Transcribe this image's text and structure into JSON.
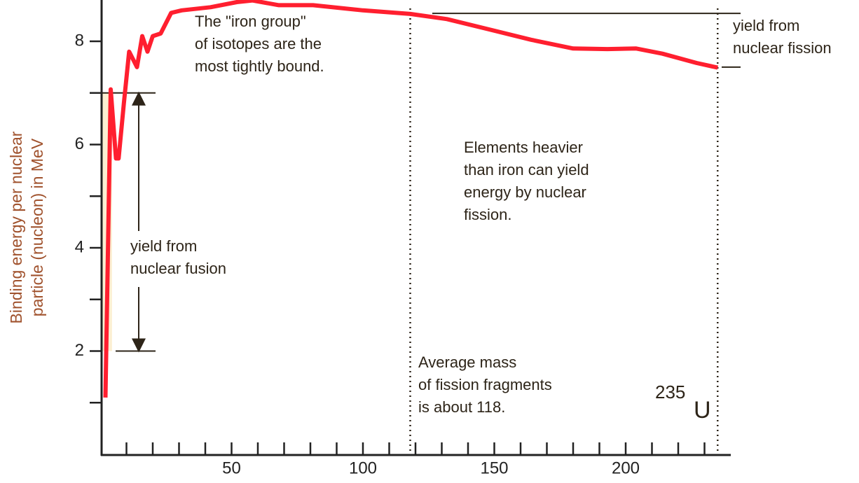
{
  "chart_data": {
    "type": "line",
    "ylabel": [
      "Binding energy per nuclear",
      "particle (nucleon) in MeV"
    ],
    "x": [
      2,
      4,
      6,
      7,
      9,
      11,
      13,
      14,
      16,
      18,
      20,
      23,
      27,
      31,
      42,
      52,
      58,
      68,
      81,
      100,
      118,
      132,
      148,
      164,
      180,
      193,
      204,
      214,
      227,
      235
    ],
    "values": [
      1.1,
      7.07,
      5.73,
      5.73,
      6.8,
      7.8,
      7.6,
      7.5,
      8.1,
      7.8,
      8.1,
      8.15,
      8.55,
      8.6,
      8.66,
      8.76,
      8.79,
      8.7,
      8.7,
      8.6,
      8.53,
      8.43,
      8.23,
      8.03,
      7.86,
      7.85,
      7.86,
      7.76,
      7.58,
      7.49
    ],
    "color": "#ff1f2f",
    "xlim": [
      0,
      240
    ],
    "ylim": [
      0,
      8.8
    ],
    "xticks": [
      50,
      100,
      150,
      200
    ],
    "xticks_minor": [
      10,
      20,
      30,
      40,
      60,
      70,
      80,
      90,
      110,
      120,
      130,
      140,
      160,
      170,
      180,
      190,
      210,
      220,
      230
    ],
    "yticks": [
      2,
      4,
      6,
      8
    ],
    "yticks_minor": [
      1,
      3,
      5,
      7
    ],
    "fusion_range": [
      2,
      7
    ],
    "fission_range": [
      7.5,
      8.54
    ],
    "markers": [
      118,
      235
    ],
    "annotations": {
      "iron": [
        "The \"iron group\"",
        "of isotopes are the",
        "most tightly bound."
      ],
      "heavier": [
        "Elements heavier",
        "than iron can yield",
        "energy by nuclear",
        "fission."
      ],
      "fusion": [
        "yield from",
        "nuclear fusion"
      ],
      "fission": [
        "yield from",
        "nuclear fission"
      ],
      "average": [
        "Average mass",
        "of fission fragments",
        "is about 118."
      ]
    },
    "uranium": {
      "mass": "235",
      "symbol": "U"
    }
  }
}
